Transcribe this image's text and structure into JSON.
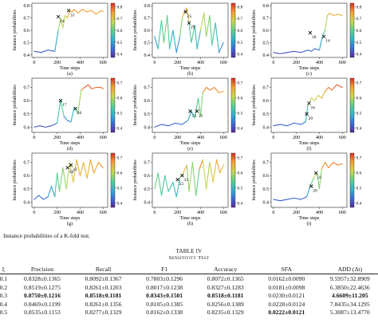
{
  "figure": {
    "caption": "Instance probabilities of a K-fold test.",
    "xlabel": "Time steps",
    "ylabel": "Instance probabilities"
  },
  "chart_data": [
    {
      "type": "line",
      "panel_label": "(a)",
      "x_ticks": [
        0,
        200,
        400,
        600
      ],
      "y_ticks": [
        0.4,
        0.5,
        0.6,
        0.7,
        0.8
      ],
      "ylim": [
        0.38,
        0.82
      ],
      "colorbar_ticks": [
        0.4,
        0.5,
        0.6,
        0.7,
        0.8
      ],
      "xlabel": "Time steps",
      "ylabel": "Instance probabilities",
      "markers": [
        {
          "label": "24",
          "x": 210,
          "y": 0.71
        },
        {
          "label": "31",
          "x": 300,
          "y": 0.76
        }
      ],
      "series": [
        {
          "values": [
            [
              0,
              0.43
            ],
            [
              60,
              0.42
            ],
            [
              120,
              0.44
            ],
            [
              180,
              0.43
            ],
            [
              210,
              0.6
            ],
            [
              230,
              0.7
            ],
            [
              250,
              0.62
            ],
            [
              270,
              0.72
            ],
            [
              290,
              0.7
            ],
            [
              310,
              0.76
            ],
            [
              330,
              0.75
            ],
            [
              350,
              0.77
            ],
            [
              380,
              0.74
            ],
            [
              420,
              0.77
            ],
            [
              460,
              0.75
            ],
            [
              500,
              0.76
            ],
            [
              540,
              0.73
            ],
            [
              580,
              0.76
            ],
            [
              600,
              0.75
            ]
          ]
        }
      ]
    },
    {
      "type": "line",
      "panel_label": "(b)",
      "x_ticks": [
        0,
        200,
        400,
        600
      ],
      "y_ticks": [
        0.4,
        0.5,
        0.6,
        0.7,
        0.8
      ],
      "ylim": [
        0.38,
        0.82
      ],
      "colorbar_ticks": [
        0.4,
        0.5,
        0.6,
        0.7,
        0.8
      ],
      "xlabel": "Time steps",
      "ylabel": "Instance probabilities",
      "markers": [
        {
          "label": "25",
          "x": 270,
          "y": 0.75
        },
        {
          "label": "29",
          "x": 300,
          "y": 0.66
        }
      ],
      "series": [
        {
          "values": [
            [
              0,
              0.55
            ],
            [
              30,
              0.45
            ],
            [
              60,
              0.68
            ],
            [
              80,
              0.5
            ],
            [
              110,
              0.72
            ],
            [
              130,
              0.45
            ],
            [
              160,
              0.6
            ],
            [
              190,
              0.42
            ],
            [
              220,
              0.55
            ],
            [
              240,
              0.7
            ],
            [
              260,
              0.75
            ],
            [
              280,
              0.78
            ],
            [
              300,
              0.66
            ],
            [
              320,
              0.5
            ],
            [
              350,
              0.64
            ],
            [
              370,
              0.45
            ],
            [
              400,
              0.6
            ],
            [
              430,
              0.74
            ],
            [
              450,
              0.55
            ],
            [
              480,
              0.72
            ],
            [
              500,
              0.48
            ],
            [
              530,
              0.66
            ],
            [
              560,
              0.42
            ],
            [
              600,
              0.5
            ]
          ]
        }
      ]
    },
    {
      "type": "line",
      "panel_label": "(c)",
      "x_ticks": [
        0,
        200,
        400,
        600
      ],
      "y_ticks": [
        0.4,
        0.5,
        0.6,
        0.7,
        0.8
      ],
      "ylim": [
        0.38,
        0.82
      ],
      "colorbar_ticks": [
        0.4,
        0.5,
        0.6,
        0.7,
        0.8
      ],
      "xlabel": "Time steps",
      "ylabel": "Instance probabilities",
      "markers": [
        {
          "label": "18",
          "x": 320,
          "y": 0.58
        },
        {
          "label": "14",
          "x": 440,
          "y": 0.55
        }
      ],
      "series": [
        {
          "values": [
            [
              0,
              0.42
            ],
            [
              60,
              0.41
            ],
            [
              120,
              0.42
            ],
            [
              180,
              0.43
            ],
            [
              240,
              0.42
            ],
            [
              300,
              0.44
            ],
            [
              330,
              0.43
            ],
            [
              360,
              0.45
            ],
            [
              400,
              0.44
            ],
            [
              430,
              0.56
            ],
            [
              450,
              0.6
            ],
            [
              470,
              0.72
            ],
            [
              490,
              0.74
            ],
            [
              520,
              0.72
            ],
            [
              560,
              0.73
            ],
            [
              600,
              0.72
            ]
          ]
        }
      ]
    },
    {
      "type": "line",
      "panel_label": "(d)",
      "x_ticks": [
        0,
        200,
        400,
        600
      ],
      "y_ticks": [
        0.4,
        0.5,
        0.6,
        0.7
      ],
      "ylim": [
        0.36,
        0.77
      ],
      "colorbar_ticks": [
        0.4,
        0.5,
        0.6,
        0.7
      ],
      "xlabel": "Time steps",
      "ylabel": "Instance probabilities",
      "markers": [
        {
          "label": "17",
          "x": 230,
          "y": 0.6
        },
        {
          "label": "26",
          "x": 360,
          "y": 0.54
        }
      ],
      "series": [
        {
          "values": [
            [
              0,
              0.4
            ],
            [
              50,
              0.41
            ],
            [
              100,
              0.4
            ],
            [
              150,
              0.41
            ],
            [
              200,
              0.43
            ],
            [
              230,
              0.6
            ],
            [
              260,
              0.48
            ],
            [
              290,
              0.45
            ],
            [
              320,
              0.44
            ],
            [
              350,
              0.55
            ],
            [
              380,
              0.5
            ],
            [
              410,
              0.68
            ],
            [
              440,
              0.7
            ],
            [
              470,
              0.72
            ],
            [
              500,
              0.69
            ],
            [
              540,
              0.7
            ],
            [
              580,
              0.7
            ],
            [
              600,
              0.69
            ]
          ]
        }
      ]
    },
    {
      "type": "line",
      "panel_label": "(e)",
      "x_ticks": [
        0,
        200,
        400,
        600
      ],
      "y_ticks": [
        0.4,
        0.5,
        0.6,
        0.7
      ],
      "ylim": [
        0.36,
        0.77
      ],
      "colorbar_ticks": [
        0.4,
        0.5,
        0.6,
        0.7
      ],
      "xlabel": "Time steps",
      "ylabel": "Instance probabilities",
      "markers": [
        {
          "label": "13",
          "x": 310,
          "y": 0.52
        },
        {
          "label": "22",
          "x": 370,
          "y": 0.52
        }
      ],
      "series": [
        {
          "values": [
            [
              0,
              0.4
            ],
            [
              60,
              0.42
            ],
            [
              120,
              0.41
            ],
            [
              180,
              0.43
            ],
            [
              240,
              0.42
            ],
            [
              290,
              0.45
            ],
            [
              320,
              0.52
            ],
            [
              350,
              0.47
            ],
            [
              380,
              0.62
            ],
            [
              400,
              0.48
            ],
            [
              420,
              0.66
            ],
            [
              450,
              0.7
            ],
            [
              480,
              0.68
            ],
            [
              520,
              0.7
            ],
            [
              560,
              0.66
            ],
            [
              600,
              0.67
            ]
          ]
        }
      ]
    },
    {
      "type": "line",
      "panel_label": "(f)",
      "x_ticks": [
        0,
        200,
        400,
        600
      ],
      "y_ticks": [
        0.4,
        0.5,
        0.6,
        0.7
      ],
      "ylim": [
        0.36,
        0.77
      ],
      "colorbar_ticks": [
        0.4,
        0.5,
        0.6,
        0.7
      ],
      "xlabel": "Time steps",
      "ylabel": "Instance probabilities",
      "markers": [
        {
          "label": "16",
          "x": 310,
          "y": 0.58
        },
        {
          "label": "29",
          "x": 290,
          "y": 0.5
        }
      ],
      "series": [
        {
          "values": [
            [
              0,
              0.41
            ],
            [
              60,
              0.42
            ],
            [
              120,
              0.41
            ],
            [
              180,
              0.43
            ],
            [
              240,
              0.42
            ],
            [
              280,
              0.44
            ],
            [
              300,
              0.56
            ],
            [
              330,
              0.62
            ],
            [
              360,
              0.6
            ],
            [
              390,
              0.64
            ],
            [
              420,
              0.62
            ],
            [
              450,
              0.67
            ],
            [
              480,
              0.7
            ],
            [
              510,
              0.68
            ],
            [
              550,
              0.72
            ],
            [
              600,
              0.7
            ]
          ]
        }
      ]
    },
    {
      "type": "line",
      "panel_label": "(g)",
      "x_ticks": [
        0,
        200,
        400,
        600
      ],
      "y_ticks": [
        0.4,
        0.5,
        0.6,
        0.7
      ],
      "ylim": [
        0.36,
        0.77
      ],
      "colorbar_ticks": [
        0.4,
        0.5,
        0.6,
        0.7
      ],
      "xlabel": "Time steps",
      "ylabel": "Instance probabilities",
      "markers": [
        {
          "label": "33",
          "x": 320,
          "y": 0.68
        },
        {
          "label": "34",
          "x": 290,
          "y": 0.66
        }
      ],
      "series": [
        {
          "values": [
            [
              0,
              0.42
            ],
            [
              40,
              0.45
            ],
            [
              80,
              0.42
            ],
            [
              120,
              0.44
            ],
            [
              150,
              0.52
            ],
            [
              180,
              0.44
            ],
            [
              200,
              0.62
            ],
            [
              220,
              0.48
            ],
            [
              250,
              0.66
            ],
            [
              280,
              0.5
            ],
            [
              310,
              0.7
            ],
            [
              340,
              0.55
            ],
            [
              370,
              0.72
            ],
            [
              400,
              0.6
            ],
            [
              430,
              0.7
            ],
            [
              460,
              0.58
            ],
            [
              490,
              0.72
            ],
            [
              520,
              0.62
            ],
            [
              560,
              0.7
            ],
            [
              600,
              0.66
            ]
          ]
        }
      ]
    },
    {
      "type": "line",
      "panel_label": "(h)",
      "x_ticks": [
        0,
        200,
        400,
        600
      ],
      "y_ticks": [
        0.4,
        0.5,
        0.6,
        0.7
      ],
      "ylim": [
        0.36,
        0.77
      ],
      "colorbar_ticks": [
        0.4,
        0.5,
        0.6,
        0.7
      ],
      "xlabel": "Time steps",
      "ylabel": "Instance probabilities",
      "markers": [
        {
          "label": "22",
          "x": 200,
          "y": 0.57
        },
        {
          "label": "33",
          "x": 240,
          "y": 0.6
        }
      ],
      "series": [
        {
          "values": [
            [
              0,
              0.5
            ],
            [
              30,
              0.62
            ],
            [
              60,
              0.45
            ],
            [
              90,
              0.6
            ],
            [
              120,
              0.48
            ],
            [
              160,
              0.55
            ],
            [
              190,
              0.44
            ],
            [
              220,
              0.58
            ],
            [
              250,
              0.62
            ],
            [
              280,
              0.68
            ],
            [
              300,
              0.48
            ],
            [
              330,
              0.7
            ],
            [
              360,
              0.45
            ],
            [
              390,
              0.65
            ],
            [
              420,
              0.72
            ],
            [
              450,
              0.5
            ],
            [
              480,
              0.7
            ],
            [
              510,
              0.55
            ],
            [
              540,
              0.72
            ],
            [
              570,
              0.62
            ],
            [
              600,
              0.68
            ]
          ]
        }
      ]
    },
    {
      "type": "line",
      "panel_label": "(i)",
      "x_ticks": [
        0,
        200,
        400,
        600
      ],
      "y_ticks": [
        0.4,
        0.5,
        0.6,
        0.7
      ],
      "ylim": [
        0.36,
        0.77
      ],
      "colorbar_ticks": [
        0.4,
        0.5,
        0.6,
        0.7
      ],
      "xlabel": "Time steps",
      "ylabel": "Instance probabilities",
      "markers": [
        {
          "label": "26",
          "x": 330,
          "y": 0.52
        },
        {
          "label": "31",
          "x": 370,
          "y": 0.62
        }
      ],
      "series": [
        {
          "values": [
            [
              0,
              0.42
            ],
            [
              60,
              0.41
            ],
            [
              120,
              0.42
            ],
            [
              180,
              0.43
            ],
            [
              240,
              0.42
            ],
            [
              290,
              0.44
            ],
            [
              320,
              0.52
            ],
            [
              350,
              0.58
            ],
            [
              380,
              0.62
            ],
            [
              400,
              0.5
            ],
            [
              420,
              0.65
            ],
            [
              450,
              0.7
            ],
            [
              480,
              0.66
            ],
            [
              520,
              0.7
            ],
            [
              560,
              0.68
            ],
            [
              600,
              0.69
            ]
          ]
        }
      ]
    }
  ],
  "table": {
    "title": "TABLE IV",
    "subtitle": "Sensitivity Test",
    "headers": [
      "ξ",
      "Precision",
      "Recall",
      "F1",
      "Accuracy",
      "SFA",
      "ADD (Δt)"
    ],
    "rows": [
      {
        "cells": [
          "0.1",
          "0.8328±0.1365",
          "0.8092±0.1367",
          "0.7803±0.1296",
          "0.8072±0.1365",
          "0.0162±0.0090",
          "9.5957±32.8909"
        ],
        "bold": []
      },
      {
        "cells": [
          "0.2",
          "0.8519±0.1275",
          "0.8261±0.1203",
          "0.8017±0.1238",
          "0.8327±0.1283",
          "0.0181±0.0098",
          "6.3850±22.4636"
        ],
        "bold": []
      },
      {
        "cells": [
          "0.3",
          "0.8750±0.1216",
          "0.8518±0.1181",
          "0.8343±0.1501",
          "0.8518±0.1181",
          "0.0230±0.0121",
          "4.6609±11.205"
        ],
        "bold": [
          1,
          2,
          3,
          4,
          6
        ]
      },
      {
        "cells": [
          "0.4",
          "0.8469±0.1199",
          "0.8261±0.1356",
          "0.8105±0.1385",
          "0.8256±0.1389",
          "0.0228±0.0124",
          "7.8435±34.1295"
        ],
        "bold": []
      },
      {
        "cells": [
          "0.5",
          "0.8535±0.1153",
          "0.8277±0.1329",
          "0.8162±0.1338",
          "0.8235±0.1329",
          "0.0222±0.0121",
          "5.3087±13.4770"
        ],
        "bold": [
          5
        ]
      }
    ]
  }
}
